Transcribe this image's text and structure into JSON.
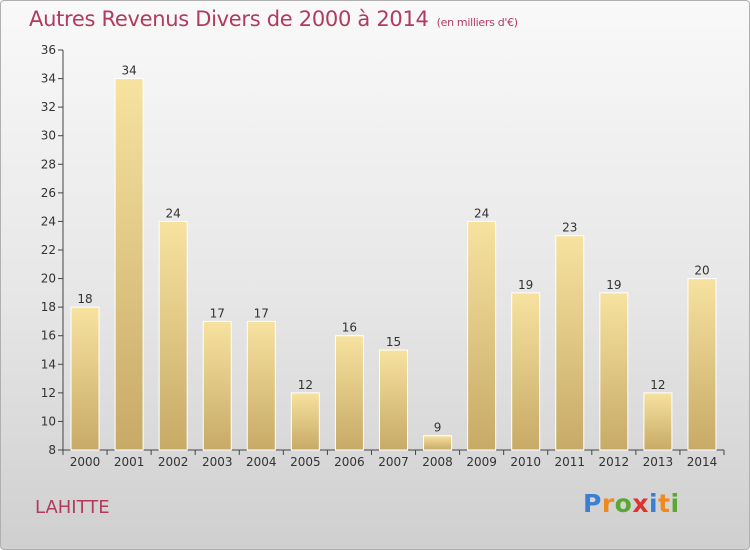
{
  "header": {
    "title": "Autres Revenus Divers de 2000 à 2014",
    "unit": "(en milliers d'€)"
  },
  "footer": {
    "place": "LAHITTE",
    "logo": "Proxiti"
  },
  "colors": {
    "title": "#b23a5e",
    "bar_top": "#f7e2a0",
    "bar_bottom": "#c7aa66",
    "bar_edge": "#ffffff"
  },
  "chart_data": {
    "type": "bar",
    "title": "Autres Revenus Divers de 2000 à 2014",
    "subtitle": "(en milliers d'€)",
    "xlabel": "",
    "ylabel": "",
    "categories": [
      "2000",
      "2001",
      "2002",
      "2003",
      "2004",
      "2005",
      "2006",
      "2007",
      "2008",
      "2009",
      "2010",
      "2011",
      "2012",
      "2013",
      "2014"
    ],
    "values": [
      18,
      34,
      24,
      17,
      17,
      12,
      16,
      15,
      9,
      24,
      19,
      23,
      19,
      12,
      20
    ],
    "ylim": [
      8,
      36
    ],
    "yticks": [
      8,
      10,
      12,
      14,
      16,
      18,
      20,
      22,
      24,
      26,
      28,
      30,
      32,
      34,
      36
    ],
    "grid": false,
    "data_labels": true,
    "legend": "none"
  }
}
